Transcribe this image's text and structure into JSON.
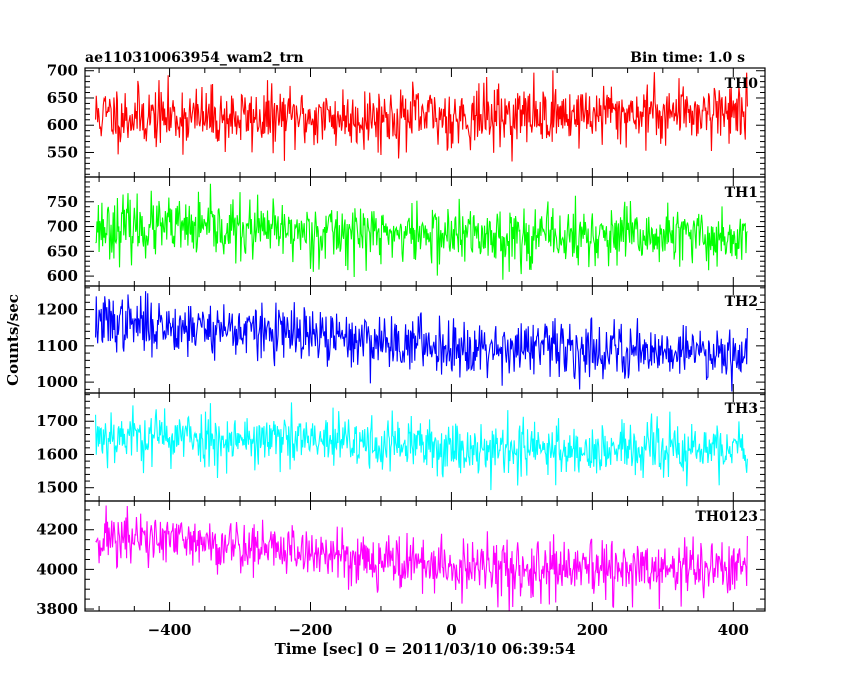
{
  "header": {
    "title": "ae110310063954_wam2_trn",
    "bin_time": "Bin time: 1.0 s"
  },
  "axes": {
    "xlabel": "Time [sec] 0 = 2011/03/10 06:39:54",
    "ylabel": "Counts/sec"
  },
  "chart_data": {
    "type": "line",
    "title": "ae110310063954_wam2_trn",
    "xlabel": "Time [sec] 0 = 2011/03/10 06:39:54",
    "ylabel": "Counts/sec",
    "xlim": [
      -520,
      445
    ],
    "x_start": -505,
    "x_end": 420,
    "bin_seconds": 1.0,
    "x_major_ticks": [
      -400,
      -200,
      0,
      200,
      400
    ],
    "x_minor_step": 50,
    "x_tick_labels": [
      "−400",
      "−200",
      "0",
      "200",
      "400"
    ],
    "panels": [
      {
        "name": "TH0",
        "color": "#ff0000",
        "ylim": [
          505,
          705
        ],
        "y_major_ticks": [
          550,
          600,
          650,
          700
        ],
        "y_tick_labels": [
          "550",
          "600",
          "650",
          "700"
        ],
        "y_minor_step": 10,
        "trend": [
          [
            -505,
            618
          ],
          [
            -300,
            613
          ],
          [
            0,
            615
          ],
          [
            200,
            621
          ],
          [
            420,
            628
          ]
        ],
        "noise_sd": 28,
        "seed": 11
      },
      {
        "name": "TH1",
        "color": "#00ff00",
        "ylim": [
          580,
          800
        ],
        "y_major_ticks": [
          600,
          650,
          700,
          750
        ],
        "y_tick_labels": [
          "600",
          "650",
          "700",
          "750"
        ],
        "y_minor_step": 10,
        "trend": [
          [
            -505,
            700
          ],
          [
            -200,
            689
          ],
          [
            100,
            680
          ],
          [
            420,
            678
          ]
        ],
        "noise_sd": 30,
        "seed": 23
      },
      {
        "name": "TH2",
        "color": "#0000ff",
        "ylim": [
          970,
          1265
        ],
        "y_major_ticks": [
          1000,
          1100,
          1200
        ],
        "y_tick_labels": [
          "1000",
          "1100",
          "1200"
        ],
        "y_minor_step": 20,
        "trend": [
          [
            -505,
            1165
          ],
          [
            -320,
            1148
          ],
          [
            -200,
            1125
          ],
          [
            0,
            1100
          ],
          [
            200,
            1090
          ],
          [
            420,
            1085
          ]
        ],
        "noise_sd": 38,
        "seed": 37
      },
      {
        "name": "TH3",
        "color": "#00ffff",
        "ylim": [
          1460,
          1785
        ],
        "y_major_ticks": [
          1500,
          1600,
          1700
        ],
        "y_tick_labels": [
          "1500",
          "1600",
          "1700"
        ],
        "y_minor_step": 20,
        "trend": [
          [
            -505,
            1660
          ],
          [
            -200,
            1640
          ],
          [
            0,
            1622
          ],
          [
            200,
            1612
          ],
          [
            420,
            1615
          ]
        ],
        "noise_sd": 42,
        "seed": 53
      },
      {
        "name": "TH0123",
        "color": "#ff00ff",
        "ylim": [
          3790,
          4345
        ],
        "y_major_ticks": [
          3800,
          4000,
          4200
        ],
        "y_tick_labels": [
          "3800",
          "4000",
          "4200"
        ],
        "y_minor_step": 50,
        "trend": [
          [
            -505,
            4165
          ],
          [
            -300,
            4120
          ],
          [
            -100,
            4050
          ],
          [
            0,
            4005
          ],
          [
            200,
            3990
          ],
          [
            420,
            4010
          ]
        ],
        "noise_sd": 70,
        "seed": 71
      }
    ]
  }
}
